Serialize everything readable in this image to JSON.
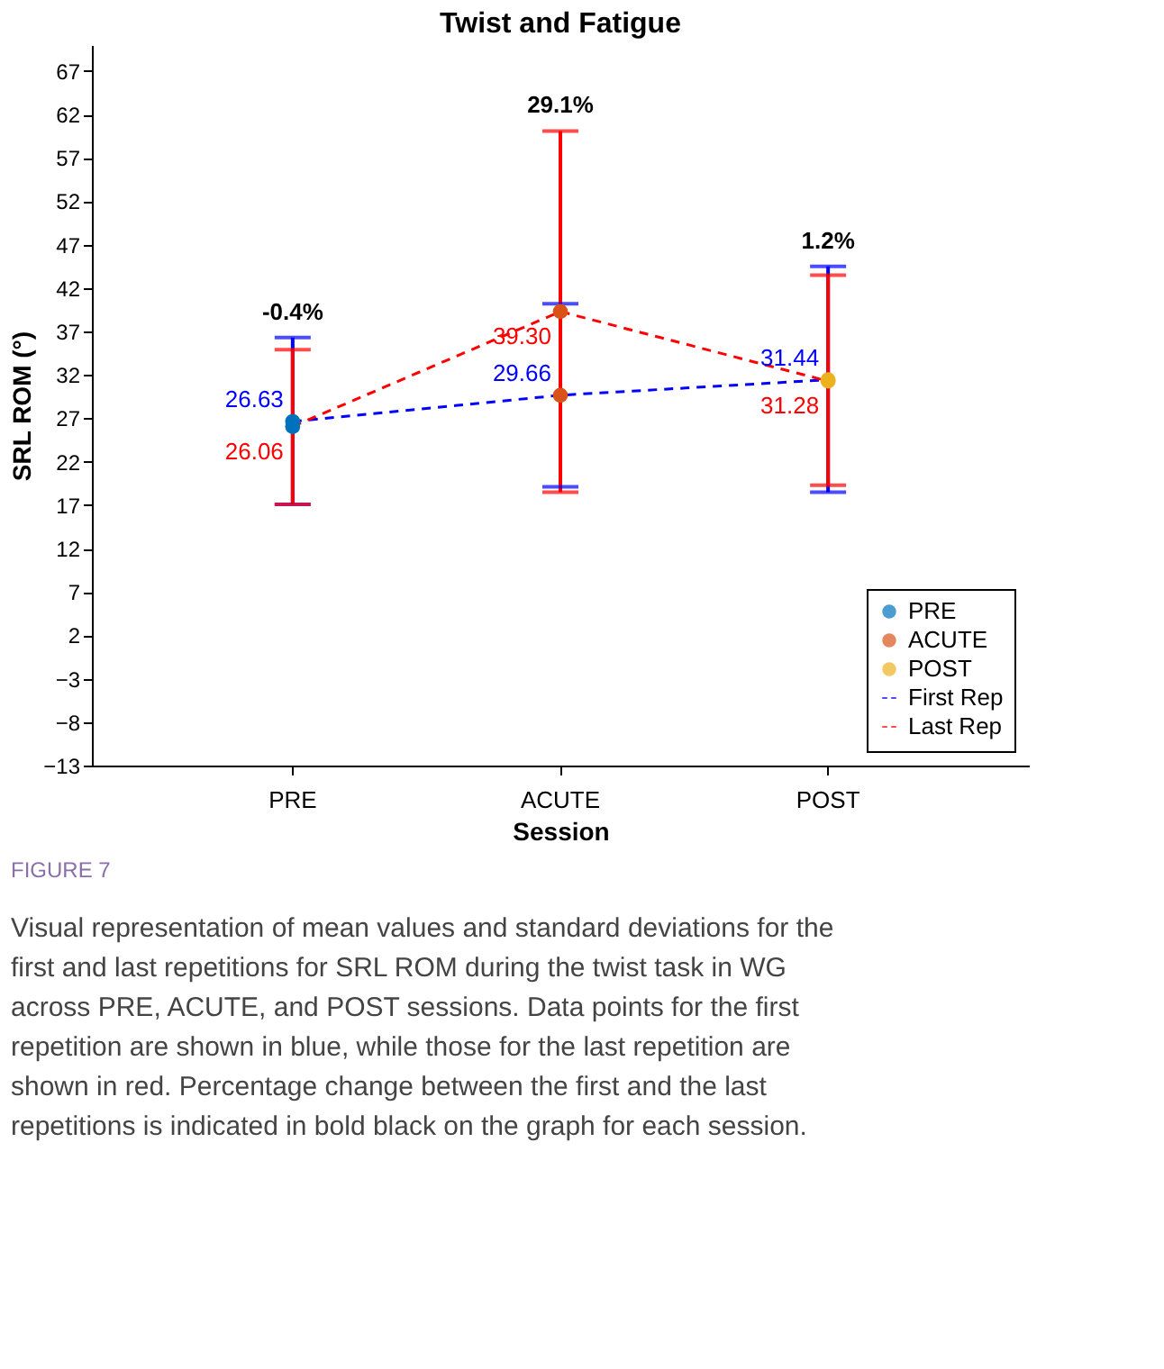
{
  "chart_data": {
    "type": "line",
    "title": "Twist and Fatigue",
    "xlabel": "Session",
    "ylabel": "SRL ROM (°)",
    "categories": [
      "PRE",
      "ACUTE",
      "POST"
    ],
    "series": [
      {
        "name": "PRE",
        "type": "scatter",
        "color": "#0072bd",
        "marker": "circle",
        "x": [
          "PRE",
          "PRE"
        ],
        "values": [
          26.63,
          26.06
        ]
      },
      {
        "name": "ACUTE",
        "type": "scatter",
        "color": "#d95319",
        "marker": "circle",
        "x": [
          "ACUTE",
          "ACUTE"
        ],
        "values": [
          29.66,
          39.3
        ]
      },
      {
        "name": "POST",
        "type": "scatter",
        "color": "#edb120",
        "marker": "circle",
        "x": [
          "POST",
          "POST"
        ],
        "values": [
          31.44,
          31.28
        ]
      },
      {
        "name": "First Rep",
        "color": "#0000ff",
        "line_style": "dashed",
        "marker": "none",
        "values": [
          26.63,
          29.66,
          31.44
        ],
        "errors": [
          [
            17.1,
            36.3
          ],
          [
            19.1,
            40.2
          ],
          [
            18.5,
            44.5
          ]
        ],
        "value_labels": [
          "26.63",
          "29.66",
          "31.44"
        ]
      },
      {
        "name": "Last Rep",
        "color": "#ff0000",
        "line_style": "dashed",
        "marker": "none",
        "values": [
          26.06,
          39.3,
          31.28
        ],
        "errors": [
          [
            17.1,
            34.9
          ],
          [
            18.5,
            60.1
          ],
          [
            19.3,
            43.5
          ]
        ],
        "value_labels": [
          "26.06",
          "39.30",
          "31.28"
        ]
      }
    ],
    "ylim": [
      -13,
      70
    ],
    "yticks": [
      -13,
      -8,
      -3,
      2,
      7,
      12,
      17,
      22,
      27,
      32,
      37,
      42,
      47,
      52,
      57,
      62,
      67
    ],
    "grid": false,
    "legend": "bottom right",
    "annotations": [
      "-0.4%",
      "29.1%",
      "1.2%",
      "FIGURE 7",
      "Visual representation of mean values and standard deviations for the first and last repetitions for SRL ROM during the twist task in WG across PRE, ACUTE, and POST sessions. Data points for the first repetition are shown in blue, while those for the last repetition are shown in red. Percentage change between the first and the last repetitions is indicated in bold black on the graph for each session."
    ]
  }
}
